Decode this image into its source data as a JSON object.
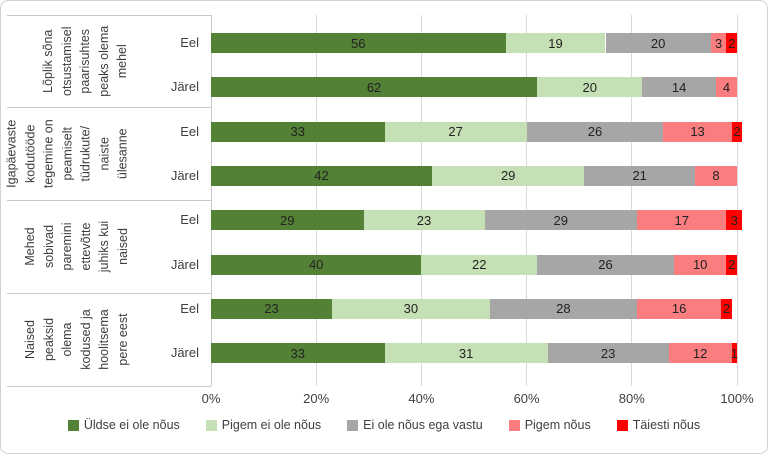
{
  "chart_data": {
    "type": "bar",
    "variant": "horizontal-stacked-100",
    "title": "",
    "xlabel": "",
    "ylabel": "",
    "x_axis": {
      "min": 0,
      "max": 100,
      "tick_labels": [
        "0%",
        "20%",
        "40%",
        "60%",
        "80%",
        "100%"
      ],
      "grid": true
    },
    "series": [
      "Üldse ei ole nõus",
      "Pigem ei ole nõus",
      "Ei ole nõus ega vastu",
      "Pigem nõus",
      "Täiesti nõus"
    ],
    "legend": {
      "position": "bottom",
      "items": [
        {
          "label": "Üldse ei ole nõus",
          "color": "#538135"
        },
        {
          "label": "Pigem ei ole nõus",
          "color": "#C5E0B4"
        },
        {
          "label": "Ei ole nõus ega vastu",
          "color": "#A6A6A6"
        },
        {
          "label": "Pigem nõus",
          "color": "#FA7D80"
        },
        {
          "label": "Täiesti nõus",
          "color": "#FF0000"
        }
      ]
    },
    "groups": [
      {
        "label": "Lõplik sõna otsustamisel paarisuhtes peaks olema mehel",
        "label_lines": [
          "Lõplik sõna",
          "otsustamisel",
          "paarisuhtes",
          "peaks olema",
          "mehel"
        ],
        "bars": [
          {
            "name": "Eel",
            "values": [
              56,
              19,
              20,
              3,
              2
            ]
          },
          {
            "name": "Järel",
            "values": [
              62,
              20,
              14,
              4,
              0
            ]
          }
        ]
      },
      {
        "label": "Igapäevaste kodutööde tegemine on peamiselt tüdrukute/ naiste ülesanne",
        "label_lines": [
          "Igapäevaste",
          "kodutööde",
          "tegemine on",
          "peamiselt",
          "tüdrukute/",
          "naiste",
          "ülesanne"
        ],
        "bars": [
          {
            "name": "Eel",
            "values": [
              33,
              27,
              26,
              13,
              2
            ]
          },
          {
            "name": "Järel",
            "values": [
              42,
              29,
              21,
              8,
              0
            ]
          }
        ]
      },
      {
        "label": "Mehed sobivad paremini ettevõtte juhiks kui naised",
        "label_lines": [
          "Mehed",
          "sobivad",
          "paremini",
          "ettevõtte",
          "juhiks kui",
          "naised"
        ],
        "bars": [
          {
            "name": "Eel",
            "values": [
              29,
              23,
              29,
              17,
              3
            ]
          },
          {
            "name": "Järel",
            "values": [
              40,
              22,
              26,
              10,
              2
            ]
          }
        ]
      },
      {
        "label": "Naised peaksid olema kodused ja hoolitsema pere eest",
        "label_lines": [
          "Naised",
          "peaksid",
          "olema",
          "kodused ja",
          "hoolitsema",
          "pere eest"
        ],
        "bars": [
          {
            "name": "Eel",
            "values": [
              23,
              30,
              28,
              16,
              2
            ]
          },
          {
            "name": "Järel",
            "values": [
              33,
              31,
              23,
              12,
              1
            ]
          }
        ]
      }
    ],
    "value_labels_shown": true,
    "style_colors": {
      "gridline": "#D9D9D9",
      "axis_line": "#C9C9C9",
      "text": "#404040",
      "value_text": "#222222",
      "background": "#FFFFFF",
      "border": "#D2D2D2"
    }
  }
}
